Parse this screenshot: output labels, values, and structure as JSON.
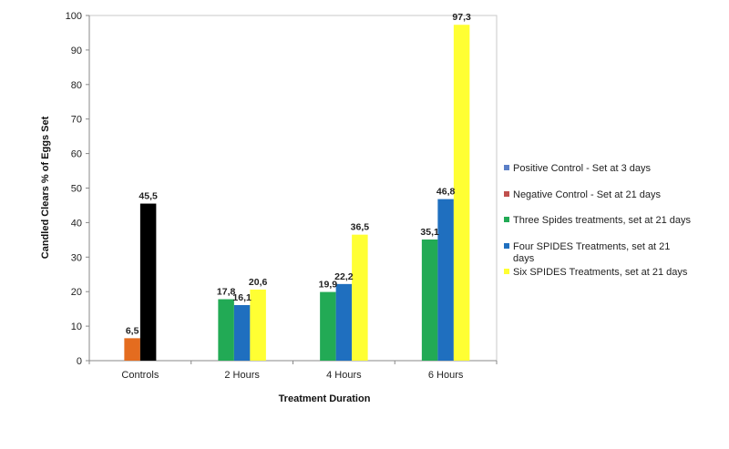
{
  "chart_data": {
    "type": "bar",
    "xlabel": "Treatment Duration",
    "ylabel": "Candled Clears % of Eggs Set",
    "ylim": [
      0,
      100
    ],
    "yticks": [
      0,
      10,
      20,
      30,
      40,
      50,
      60,
      70,
      80,
      90,
      100
    ],
    "grid": false,
    "legend_position": "right",
    "categories": [
      "Controls",
      "2 Hours",
      "4 Hours",
      "6 Hours"
    ],
    "series": [
      {
        "name": "Positive Control - Set at 3 days",
        "color": "#e46c1f",
        "legend_color": "#5b7fc7",
        "values": [
          6.5,
          null,
          null,
          null
        ],
        "labels": [
          "6,5",
          "",
          "",
          ""
        ]
      },
      {
        "name": "Negative Control - Set at 21 days",
        "color": "#000000",
        "legend_color": "#c0504d",
        "values": [
          45.5,
          null,
          null,
          null
        ],
        "labels": [
          "45,5",
          "",
          "",
          ""
        ]
      },
      {
        "name": "Three Spides treatments, set at 21 days",
        "color": "#22aa55",
        "legend_color": "#22aa55",
        "values": [
          null,
          17.8,
          19.9,
          35.1
        ],
        "labels": [
          "",
          "17,8",
          "19,9",
          "35,1"
        ]
      },
      {
        "name": "Four SPIDES Treatments, set at 21 days",
        "color": "#1f6fbf",
        "legend_color": "#1f6fbf",
        "values": [
          null,
          16.1,
          22.2,
          46.8
        ],
        "labels": [
          "",
          "16,1",
          "22,2",
          "46,8"
        ]
      },
      {
        "name": "Six SPIDES Treatments, set at 21 days",
        "color": "#ffff33",
        "legend_color": "#ffff33",
        "values": [
          null,
          20.6,
          36.5,
          97.3
        ],
        "labels": [
          "",
          "20,6",
          "36,5",
          "97,3"
        ]
      }
    ]
  }
}
